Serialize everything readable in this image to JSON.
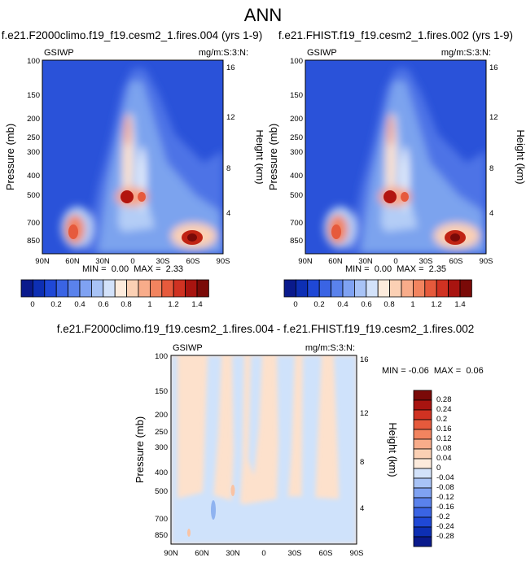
{
  "main_title": "ANN",
  "colors": {
    "background": "#2a52d9",
    "mid": "#7ba3ee",
    "high": "#d73027",
    "diff_pos": "#fde1cc",
    "diff_neg": "#cfe2fb"
  },
  "chart_data": [
    {
      "type": "heatmap",
      "title": "f.e21.F2000climo.f19_f19.cesm2_1.fires.004 (yrs 1-9)",
      "left_label": "GSIWP",
      "right_label": "mg/m:S:3:N:",
      "ylabel": "Pressure (mb)",
      "ylabel_right": "Height (km)",
      "x_ticks": [
        "90N",
        "60N",
        "30N",
        "0",
        "30S",
        "60S",
        "90S"
      ],
      "y_ticks": [
        "100",
        "150",
        "200",
        "250",
        "300",
        "400",
        "500",
        "700",
        "850"
      ],
      "y_ticks_right": [
        "16",
        "12",
        "8",
        "4"
      ],
      "min_label": "MIN =  0.00  MAX =  2.33",
      "min": 0.0,
      "max": 2.33,
      "colorbar_labels": [
        "0",
        "0.2",
        "0.4",
        "0.6",
        "0.8",
        "1",
        "1.2",
        "1.4"
      ],
      "colorbar_colors": [
        "#0a1a8c",
        "#0d2fb4",
        "#1f48d6",
        "#3a64e4",
        "#5a82ec",
        "#7fa2f2",
        "#a8c3f6",
        "#d3e2fa",
        "#fdebdc",
        "#fbd0b4",
        "#f8ac8a",
        "#f2845f",
        "#e65a3c",
        "#d03222",
        "#a81410",
        "#7a0a08"
      ]
    },
    {
      "type": "heatmap",
      "title": "f.e21.FHIST.f19_f19.cesm2_1.fires.002 (yrs 1-9)",
      "left_label": "GSIWP",
      "right_label": "mg/m:S:3:N:",
      "ylabel": "Pressure (mb)",
      "ylabel_right": "Height (km)",
      "x_ticks": [
        "90N",
        "60N",
        "30N",
        "0",
        "30S",
        "60S",
        "90S"
      ],
      "y_ticks": [
        "100",
        "150",
        "200",
        "250",
        "300",
        "400",
        "500",
        "700",
        "850"
      ],
      "y_ticks_right": [
        "16",
        "12",
        "8",
        "4"
      ],
      "min_label": "MIN =  0.00  MAX =  2.35",
      "min": 0.0,
      "max": 2.35,
      "colorbar_labels": [
        "0",
        "0.2",
        "0.4",
        "0.6",
        "0.8",
        "1",
        "1.2",
        "1.4"
      ],
      "colorbar_colors": [
        "#0a1a8c",
        "#0d2fb4",
        "#1f48d6",
        "#3a64e4",
        "#5a82ec",
        "#7fa2f2",
        "#a8c3f6",
        "#d3e2fa",
        "#fdebdc",
        "#fbd0b4",
        "#f8ac8a",
        "#f2845f",
        "#e65a3c",
        "#d03222",
        "#a81410",
        "#7a0a08"
      ]
    },
    {
      "type": "heatmap",
      "title": "f.e21.F2000climo.f19_f19.cesm2_1.fires.004 - f.e21.FHIST.f19_f19.cesm2_1.fires.002",
      "left_label": "GSIWP",
      "right_label": "mg/m:S:3:N:",
      "ylabel": "Pressure (mb)",
      "ylabel_right": "Height (km)",
      "x_ticks": [
        "90N",
        "60N",
        "30N",
        "0",
        "30S",
        "60S",
        "90S"
      ],
      "y_ticks": [
        "100",
        "150",
        "200",
        "250",
        "300",
        "400",
        "500",
        "700",
        "850"
      ],
      "y_ticks_right": [
        "16",
        "12",
        "8",
        "4"
      ],
      "min_label": "MIN = -0.06  MAX =  0.06",
      "min": -0.06,
      "max": 0.06,
      "colorbar_labels": [
        "0.28",
        "0.24",
        "0.2",
        "0.16",
        "0.12",
        "0.08",
        "0.04",
        "0",
        "-0.04",
        "-0.08",
        "-0.12",
        "-0.16",
        "-0.2",
        "-0.24",
        "-0.28"
      ],
      "colorbar_colors": [
        "#7a0a08",
        "#a81410",
        "#d03222",
        "#e65a3c",
        "#f2845f",
        "#f8ac8a",
        "#fbd0b4",
        "#fdebdc",
        "#d3e2fa",
        "#a8c3f6",
        "#7fa2f2",
        "#5a82ec",
        "#3a64e4",
        "#1f48d6",
        "#0d2fb4",
        "#0a1a8c"
      ]
    }
  ]
}
